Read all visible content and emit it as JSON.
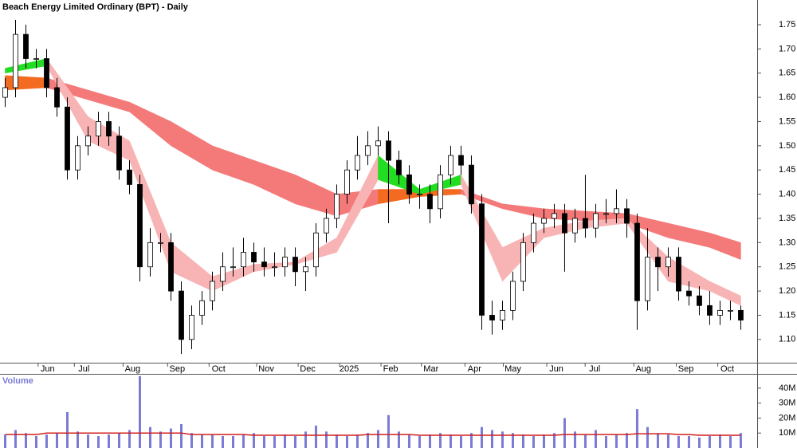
{
  "chart_data": [
    {
      "type": "candlestick",
      "title": "Beach Energy Limited Ordinary (BPT) - Daily",
      "x": [
        0,
        1,
        2,
        3,
        4,
        5,
        6,
        7,
        8,
        9,
        10,
        11,
        12,
        13,
        14,
        15,
        16,
        17,
        18,
        19,
        20,
        21,
        22,
        23,
        24,
        25,
        26,
        27,
        28,
        29,
        30,
        31,
        32,
        33,
        34,
        35,
        36,
        37,
        38,
        39,
        40,
        41,
        42,
        43,
        44,
        45,
        46,
        47,
        48,
        49,
        50,
        51,
        52,
        53,
        54,
        55,
        56,
        57,
        58,
        59,
        60,
        61,
        62,
        63,
        64,
        65,
        66,
        67,
        68,
        69,
        70,
        71
      ],
      "open": [
        1.6,
        1.62,
        1.73,
        1.68,
        1.68,
        1.62,
        1.58,
        1.45,
        1.5,
        1.52,
        1.55,
        1.52,
        1.45,
        1.42,
        1.25,
        1.3,
        1.3,
        1.2,
        1.1,
        1.15,
        1.18,
        1.22,
        1.25,
        1.25,
        1.28,
        1.26,
        1.25,
        1.25,
        1.27,
        1.24,
        1.25,
        1.32,
        1.35,
        1.4,
        1.45,
        1.48,
        1.5,
        1.51,
        1.47,
        1.44,
        1.4,
        1.4,
        1.37,
        1.44,
        1.48,
        1.46,
        1.38,
        1.15,
        1.14,
        1.16,
        1.22,
        1.3,
        1.34,
        1.35,
        1.36,
        1.32,
        1.35,
        1.33,
        1.36,
        1.36,
        1.37,
        1.34,
        1.18,
        1.27,
        1.25,
        1.27,
        1.2,
        1.19,
        1.17,
        1.15,
        1.16,
        1.16
      ],
      "high": [
        1.64,
        1.76,
        1.75,
        1.7,
        1.7,
        1.64,
        1.6,
        1.52,
        1.54,
        1.57,
        1.57,
        1.54,
        1.47,
        1.44,
        1.33,
        1.32,
        1.32,
        1.22,
        1.17,
        1.2,
        1.24,
        1.28,
        1.29,
        1.31,
        1.3,
        1.29,
        1.28,
        1.29,
        1.29,
        1.27,
        1.34,
        1.37,
        1.42,
        1.47,
        1.52,
        1.53,
        1.54,
        1.53,
        1.49,
        1.46,
        1.42,
        1.42,
        1.46,
        1.5,
        1.5,
        1.48,
        1.4,
        1.18,
        1.18,
        1.24,
        1.32,
        1.36,
        1.37,
        1.38,
        1.38,
        1.37,
        1.44,
        1.38,
        1.39,
        1.41,
        1.39,
        1.36,
        1.33,
        1.29,
        1.29,
        1.29,
        1.22,
        1.21,
        1.2,
        1.18,
        1.18,
        1.17
      ],
      "low": [
        1.58,
        1.6,
        1.66,
        1.66,
        1.6,
        1.56,
        1.43,
        1.43,
        1.48,
        1.5,
        1.5,
        1.43,
        1.4,
        1.22,
        1.23,
        1.28,
        1.18,
        1.07,
        1.08,
        1.13,
        1.16,
        1.2,
        1.23,
        1.23,
        1.24,
        1.23,
        1.23,
        1.23,
        1.21,
        1.2,
        1.23,
        1.3,
        1.33,
        1.38,
        1.43,
        1.46,
        1.48,
        1.34,
        1.42,
        1.38,
        1.37,
        1.34,
        1.35,
        1.42,
        1.44,
        1.36,
        1.12,
        1.11,
        1.12,
        1.14,
        1.2,
        1.28,
        1.32,
        1.33,
        1.24,
        1.3,
        1.31,
        1.31,
        1.34,
        1.34,
        1.31,
        1.12,
        1.16,
        1.2,
        1.23,
        1.18,
        1.17,
        1.15,
        1.13,
        1.13,
        1.14,
        1.12
      ],
      "close": [
        1.62,
        1.73,
        1.68,
        1.68,
        1.62,
        1.58,
        1.45,
        1.5,
        1.52,
        1.55,
        1.52,
        1.45,
        1.42,
        1.25,
        1.3,
        1.3,
        1.2,
        1.1,
        1.15,
        1.18,
        1.22,
        1.25,
        1.25,
        1.28,
        1.26,
        1.25,
        1.25,
        1.27,
        1.24,
        1.25,
        1.32,
        1.35,
        1.4,
        1.45,
        1.48,
        1.5,
        1.51,
        1.47,
        1.44,
        1.4,
        1.4,
        1.37,
        1.44,
        1.48,
        1.46,
        1.38,
        1.15,
        1.14,
        1.16,
        1.22,
        1.3,
        1.34,
        1.35,
        1.36,
        1.32,
        1.35,
        1.33,
        1.36,
        1.36,
        1.37,
        1.34,
        1.18,
        1.27,
        1.25,
        1.27,
        1.2,
        1.19,
        1.17,
        1.15,
        1.16,
        1.16,
        1.14
      ],
      "up_color": "#ffffff",
      "down_color": "#000000",
      "ribbons": [
        {
          "x": [
            0,
            4,
            8,
            12,
            16,
            20,
            24,
            28,
            32,
            36,
            40,
            44,
            48,
            52,
            56,
            60,
            64,
            68,
            71
          ],
          "upper": [
            1.645,
            1.64,
            1.615,
            1.59,
            1.55,
            1.5,
            1.47,
            1.44,
            1.4,
            1.41,
            1.41,
            1.41,
            1.38,
            1.37,
            1.365,
            1.36,
            1.34,
            1.32,
            1.3
          ],
          "lower": [
            1.615,
            1.62,
            1.595,
            1.57,
            1.5,
            1.45,
            1.42,
            1.38,
            1.355,
            1.38,
            1.395,
            1.4,
            1.37,
            1.35,
            1.345,
            1.34,
            1.31,
            1.29,
            1.265
          ],
          "up_color": "#f26b21",
          "down_color": "#f47a7a"
        },
        {
          "x": [
            0,
            4,
            8,
            12,
            16,
            20,
            24,
            28,
            32,
            36,
            40,
            44,
            48,
            52,
            56,
            60,
            64,
            68,
            71
          ],
          "upper": [
            1.66,
            1.68,
            1.56,
            1.51,
            1.3,
            1.23,
            1.255,
            1.26,
            1.31,
            1.48,
            1.41,
            1.44,
            1.29,
            1.33,
            1.345,
            1.35,
            1.27,
            1.22,
            1.19
          ],
          "lower": [
            1.65,
            1.665,
            1.51,
            1.47,
            1.24,
            1.2,
            1.24,
            1.255,
            1.28,
            1.43,
            1.4,
            1.42,
            1.22,
            1.31,
            1.33,
            1.34,
            1.22,
            1.2,
            1.17
          ],
          "up_color": "#22dd22",
          "down_color": "#f8b4b4"
        }
      ],
      "xlim": [
        -0.5,
        72.58
      ],
      "xticks": [
        {
          "value": 4.1,
          "label": "Jun"
        },
        {
          "value": 7.6,
          "label": "Jul"
        },
        {
          "value": 12.3,
          "label": "Aug"
        },
        {
          "value": 16.6,
          "label": "Sep"
        },
        {
          "value": 20.6,
          "label": "Oct"
        },
        {
          "value": 25.2,
          "label": "Nov"
        },
        {
          "value": 29.2,
          "label": "Dec"
        },
        {
          "value": 33.2,
          "label": "2025"
        },
        {
          "value": 37.2,
          "label": "Feb"
        },
        {
          "value": 41.1,
          "label": "Mar"
        },
        {
          "value": 45.3,
          "label": "Apr"
        },
        {
          "value": 49.0,
          "label": "May"
        },
        {
          "value": 53.2,
          "label": "Jun"
        },
        {
          "value": 56.9,
          "label": "Jul"
        },
        {
          "value": 61.6,
          "label": "Aug"
        },
        {
          "value": 65.7,
          "label": "Sep"
        },
        {
          "value": 69.7,
          "label": "Oct"
        }
      ],
      "ylim": [
        1.052,
        1.801
      ],
      "yticks": [
        {
          "value": 1.1,
          "label": "1.10"
        },
        1.15,
        {
          "value": 1.2,
          "label": "1.20"
        },
        1.25,
        {
          "value": 1.3,
          "label": "1.30"
        },
        1.35,
        {
          "value": 1.4,
          "label": "1.40"
        },
        1.45,
        {
          "value": 1.5,
          "label": "1.50"
        },
        1.55,
        {
          "value": 1.6,
          "label": "1.60"
        },
        1.65,
        {
          "value": 1.7,
          "label": "1.70"
        },
        1.75
      ]
    },
    {
      "type": "bar",
      "title": "Volume",
      "values": [
        9000000,
        12000000,
        10000000,
        8000000,
        9000000,
        10000000,
        24000000,
        11000000,
        9000000,
        8000000,
        9000000,
        10000000,
        12000000,
        48000000,
        14000000,
        11000000,
        13000000,
        16000000,
        10000000,
        9000000,
        9000000,
        8000000,
        8000000,
        9000000,
        10000000,
        8000000,
        8000000,
        9000000,
        8000000,
        11000000,
        15000000,
        11000000,
        9000000,
        8000000,
        9000000,
        10000000,
        12000000,
        22000000,
        11000000,
        9000000,
        8000000,
        9000000,
        10000000,
        9000000,
        8000000,
        10000000,
        14000000,
        12000000,
        11000000,
        10000000,
        9000000,
        8000000,
        9000000,
        10000000,
        20000000,
        11000000,
        9000000,
        12000000,
        8000000,
        9000000,
        10000000,
        26000000,
        14000000,
        10000000,
        9000000,
        8000000,
        8000000,
        7000000,
        8000000,
        9000000,
        8000000,
        10000000
      ],
      "average": [
        9000000,
        9000000,
        9000000,
        9000000,
        10000000,
        10000000,
        10000000,
        10000000,
        10000000,
        10000000,
        10000000,
        10000000,
        10000000,
        10000000,
        10000000,
        10000000,
        10000000,
        10000000,
        9000000,
        9000000,
        9000000,
        9000000,
        9000000,
        9000000,
        8500000,
        8500000,
        8500000,
        8500000,
        8500000,
        8500000,
        8500000,
        8500000,
        8500000,
        8500000,
        8500000,
        9000000,
        9000000,
        9000000,
        9000000,
        9000000,
        8500000,
        8500000,
        8500000,
        8500000,
        8500000,
        8500000,
        8500000,
        8500000,
        8500000,
        8500000,
        8500000,
        8500000,
        8500000,
        8500000,
        9000000,
        9000000,
        9000000,
        9000000,
        9000000,
        9000000,
        9000000,
        9500000,
        9500000,
        9500000,
        9500000,
        9000000,
        9000000,
        8500000,
        8500000,
        8500000,
        8500000,
        8500000
      ],
      "color": "#7b7bd6",
      "average_color": "#d02020",
      "ylim": [
        0,
        49000000
      ],
      "yticks": [
        {
          "value": 10000000,
          "label": "10M"
        },
        {
          "value": 20000000,
          "label": "20M"
        },
        {
          "value": 30000000,
          "label": "30M"
        },
        {
          "value": 40000000,
          "label": "40M"
        }
      ]
    }
  ]
}
